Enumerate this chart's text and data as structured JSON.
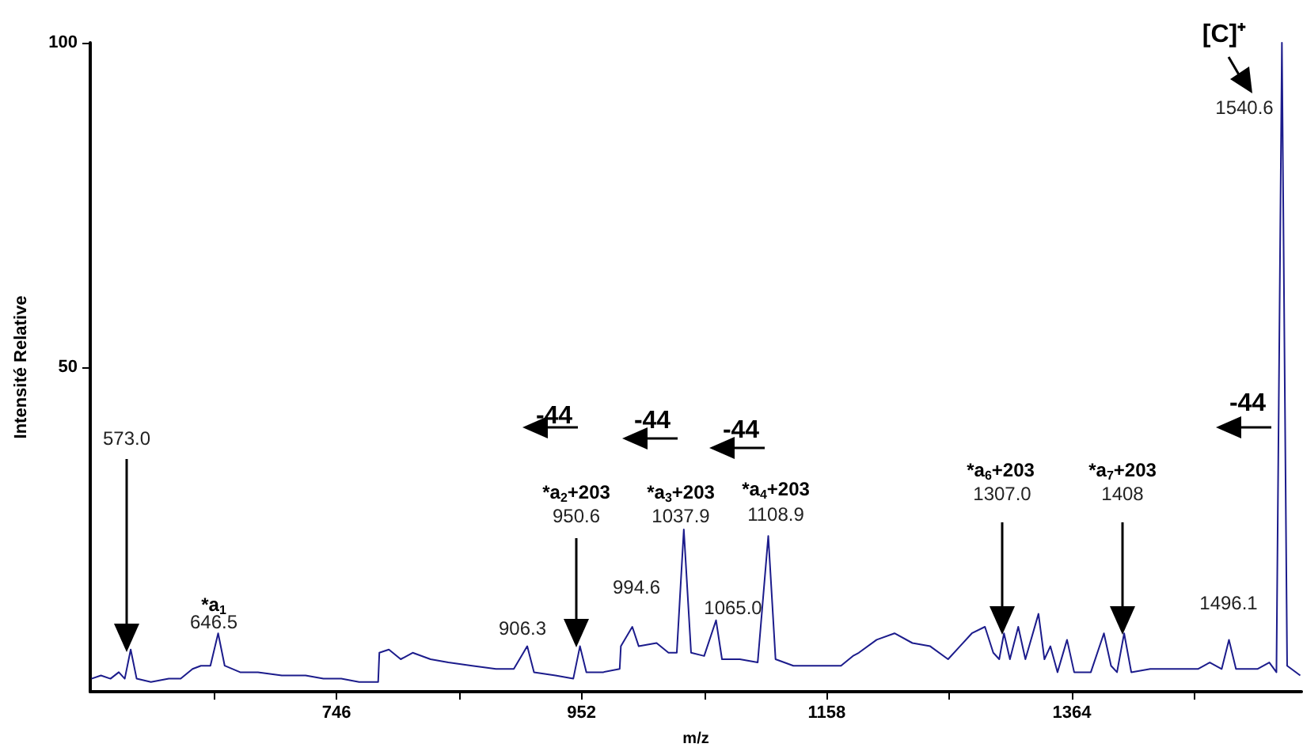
{
  "chart_data": {
    "type": "line",
    "xlabel": "m/z",
    "ylabel": "Intensité Relative",
    "xlim": [
      539,
      1557
    ],
    "ylim": [
      0,
      100
    ],
    "xticks": [
      {
        "value": 643,
        "label": null
      },
      746,
      {
        "value": 849,
        "label": null
      },
      952,
      {
        "value": 1055,
        "label": null
      },
      1158,
      {
        "value": 1261,
        "label": null
      },
      1364,
      {
        "value": 1467,
        "label": null
      }
    ],
    "yticks": [
      50,
      100
    ],
    "grid": false,
    "marker": "none",
    "line_style": "solid",
    "series": [
      {
        "color": "#1c1c8c",
        "x": [
          540,
          548,
          556,
          563,
          568,
          573,
          578,
          590,
          605,
          615,
          625,
          632,
          640,
          646.5,
          652,
          665,
          680,
          700,
          720,
          735,
          750,
          765,
          781,
          782,
          790,
          800,
          810,
          825,
          840,
          860,
          880,
          895,
          906.3,
          912,
          930,
          945,
          950.6,
          956,
          970,
          984,
          985,
          994.6,
          1000,
          1015,
          1025,
          1032,
          1037.9,
          1044,
          1055,
          1065,
          1070,
          1085,
          1100,
          1108.9,
          1115,
          1130,
          1150,
          1170,
          1180,
          1185,
          1200,
          1215,
          1230,
          1245,
          1260,
          1270,
          1280,
          1291,
          1298,
          1303,
          1307,
          1312,
          1319,
          1325,
          1336,
          1341,
          1346,
          1352,
          1360,
          1366,
          1380,
          1391,
          1397,
          1402,
          1408,
          1414,
          1430,
          1450,
          1470,
          1480,
          1490,
          1496.1,
          1502,
          1520,
          1530,
          1536,
          1540.6,
          1545,
          1556
        ],
        "values": [
          2,
          2.5,
          2,
          3,
          2,
          6.5,
          2,
          1.5,
          2,
          2,
          3.5,
          4,
          4,
          9,
          4,
          3,
          3,
          2.5,
          2.5,
          2,
          2,
          1.5,
          1.5,
          6,
          6.5,
          5,
          6,
          5,
          4.5,
          4,
          3.5,
          3.5,
          7,
          3,
          2.5,
          2,
          7,
          3,
          3,
          3.5,
          7,
          10,
          7,
          7.5,
          6,
          6,
          25,
          6,
          5.5,
          11,
          5,
          5,
          4.5,
          24,
          5,
          4,
          4,
          4,
          5.5,
          6,
          8,
          9,
          7.5,
          7,
          5,
          7,
          9,
          10,
          6,
          5,
          9,
          5,
          10,
          5,
          12,
          5,
          7,
          3,
          8,
          3,
          3,
          9,
          4,
          3,
          9,
          3,
          3.5,
          3.5,
          3.5,
          4.5,
          3.5,
          8,
          3.5,
          3.5,
          4.5,
          3,
          100,
          4,
          2.5
        ]
      }
    ],
    "annotations": [
      "573.0",
      "*a$_{1}$",
      "646.5",
      "906.3",
      "*a$_{2}$+203",
      "950.6",
      "994.6",
      "*a$_{3}$+203",
      "1037.9",
      "1065.0",
      "*a$_{4}$+203",
      "1108.9",
      "*a$_{6}$+203",
      "1307.0",
      "*a$_{7}$+203",
      "1408",
      "1496.1",
      "[C]⁺",
      "1540.6",
      "-44",
      "-44",
      "-44",
      "-44"
    ]
  }
}
